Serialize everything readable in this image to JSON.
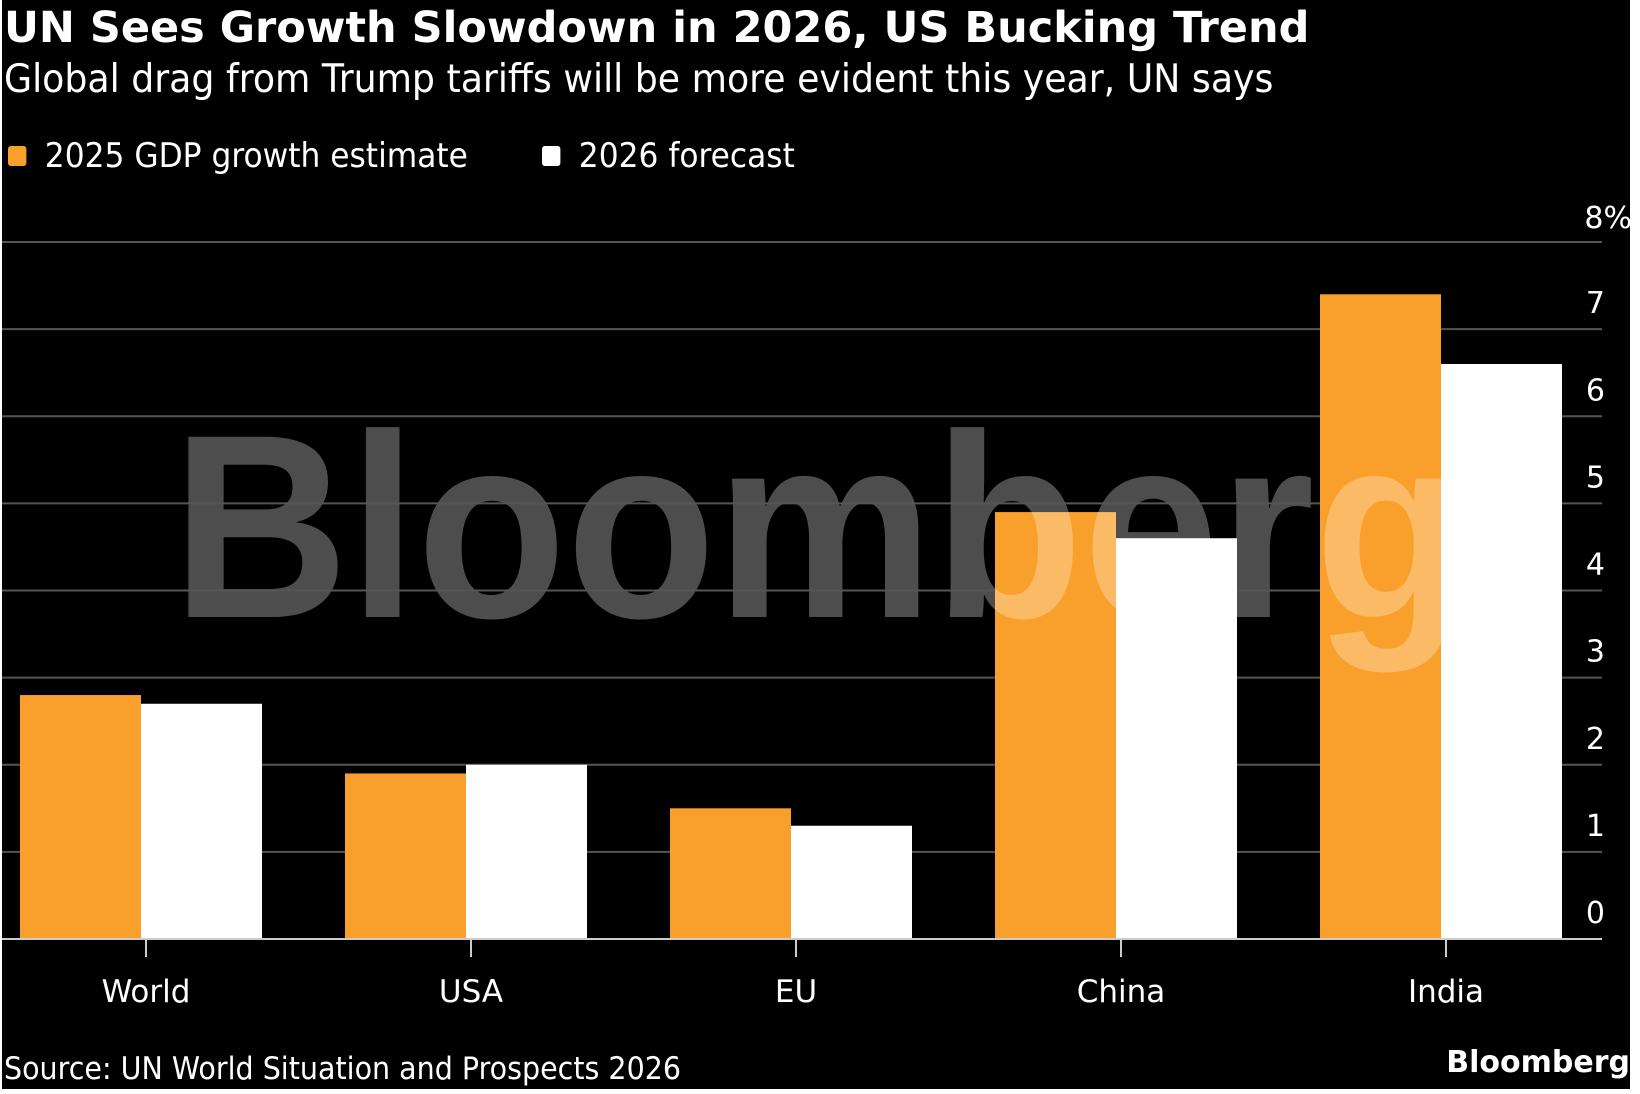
{
  "header": {
    "title": "UN Sees Growth Slowdown in 2026, US Bucking Trend",
    "subtitle": "Global drag from Trump tariffs will be more evident this year, UN says"
  },
  "footer": {
    "source": "Source: UN World Situation and Prospects 2026",
    "brand": "Bloomberg"
  },
  "watermark": "Bloomberg",
  "colors": {
    "background": "#000000",
    "series_2025": "#F9A02C",
    "series_2026": "#FFFFFF",
    "gridline": "#555555",
    "watermark": "#4D4D4D"
  },
  "chart_data": {
    "type": "bar",
    "title": "UN Sees Growth Slowdown in 2026, US Bucking Trend",
    "subtitle": "Global drag from Trump tariffs will be more evident this year, UN says",
    "categories": [
      "World",
      "USA",
      "EU",
      "China",
      "India"
    ],
    "series": [
      {
        "name": "2025 GDP growth estimate",
        "color": "#F9A02C",
        "values": [
          2.8,
          1.9,
          1.5,
          4.9,
          7.4
        ]
      },
      {
        "name": "2026 forecast",
        "color": "#FFFFFF",
        "values": [
          2.7,
          2.0,
          1.3,
          4.6,
          6.6
        ]
      }
    ],
    "xlabel": "",
    "ylabel": "",
    "ylim": [
      0,
      8
    ],
    "yticks": [
      0,
      1,
      2,
      3,
      4,
      5,
      6,
      7,
      8
    ],
    "ytick_labels": [
      "0",
      "1",
      "2",
      "3",
      "4",
      "5",
      "6",
      "7",
      "8%"
    ],
    "y_axis_side": "right",
    "grid": true,
    "legend_position": "top-left",
    "source": "Source: UN World Situation and Prospects 2026"
  }
}
